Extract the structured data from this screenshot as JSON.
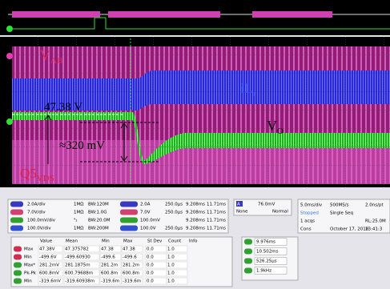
{
  "annotations": {
    "v_ab": {
      "text": "V",
      "sub": "AB"
    },
    "il_r": {
      "text": "iL",
      "sub": "r"
    },
    "v_o": {
      "text": "V",
      "sub": "O"
    },
    "level": "47.38 V",
    "ripple": "≈320 mV",
    "q5": {
      "text": "Q5",
      "sub": "VDS"
    }
  },
  "channels": [
    [
      "2.0A/div",
      "1MΩ",
      "BW:120M",
      "2.0A",
      "250.0µs",
      "9.208ms",
      "11.71ms"
    ],
    [
      "7.0V/div",
      "1MΩ",
      "BW:1.0G",
      "7.0V",
      "250.0µs",
      "9.208ms",
      "11.71ms"
    ],
    [
      "100.0mV/div",
      "⁴₁",
      "BW:20.0M",
      "100.0mV",
      "",
      "9.208ms",
      "11.71ms"
    ],
    [
      "100.0V/div",
      "1MΩ",
      "BW:200M",
      "100.0V",
      "250.0µs",
      "9.208ms",
      "11.71ms"
    ]
  ],
  "trigger": {
    "source": "A",
    "level": "76.0mV",
    "coupling": "None",
    "mode": "Normal"
  },
  "acquisition": [
    [
      "5.0ms/div",
      "500MS/s",
      "2.0ns/pt"
    ],
    [
      "Stopped",
      "Single Seq",
      ""
    ],
    [
      "1 acqs",
      "",
      "RL:25.0M"
    ],
    [
      "Cons",
      "October 17, 2018",
      "13:41:3"
    ]
  ],
  "measurements": {
    "header": [
      "Value",
      "Mean",
      "Min",
      "Max",
      "St Dev",
      "Count",
      "Info"
    ],
    "rows": [
      [
        "Max",
        "47.38V",
        "47.375782",
        "47.38",
        "47.38",
        "0.0",
        "1.0"
      ],
      [
        "Min",
        "-499.6V",
        "-499.60930",
        "-499.6",
        "-499.6",
        "0.0",
        "1.0"
      ],
      [
        "Max*",
        "281.2mV",
        "281.1875m",
        "281.2m",
        "281.2m",
        "0.0",
        "1.0"
      ],
      [
        "Pk-Pk",
        "600.8mV",
        "600.79688m",
        "600.8m",
        "600.8m",
        "0.0",
        "1.0"
      ],
      [
        "Min",
        "-319.6mV",
        "-319.60938m",
        "-319.6m",
        "-319.6m",
        "0.0",
        "1.0"
      ]
    ]
  },
  "cursors": [
    "9.976ms",
    "10.502ms",
    "526.25µs",
    "1.9kHz"
  ]
}
